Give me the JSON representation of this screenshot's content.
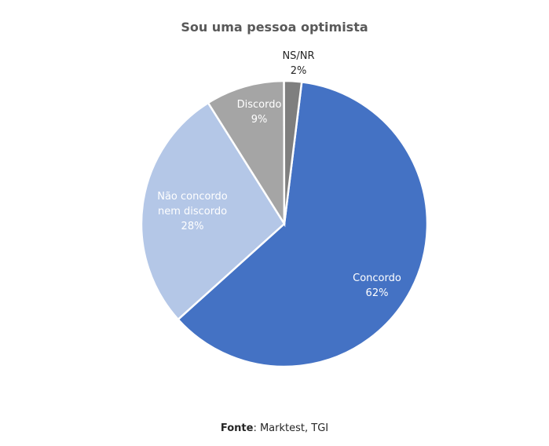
{
  "chart_data": {
    "type": "pie",
    "title": "Sou uma pessoa optimista",
    "categories": [
      "Concordo",
      "Não concordo nem discordo",
      "Discordo",
      "NS/NR"
    ],
    "values": [
      62,
      28,
      9,
      2
    ],
    "unit": "%",
    "colors": [
      "#4472c4",
      "#b4c7e7",
      "#a5a5a5",
      "#7f7f7f"
    ],
    "labels": [
      {
        "name": "Concordo",
        "value": "62%"
      },
      {
        "name_line1": "Não concordo",
        "name_line2": "nem discordo",
        "value": "28%"
      },
      {
        "name": "Discordo",
        "value": "9%"
      },
      {
        "name": "NS/NR",
        "value": "2%"
      }
    ],
    "legend": "none (data labels on slices)"
  },
  "source": {
    "label": "Fonte",
    "text": ": Marktest, TGI"
  }
}
